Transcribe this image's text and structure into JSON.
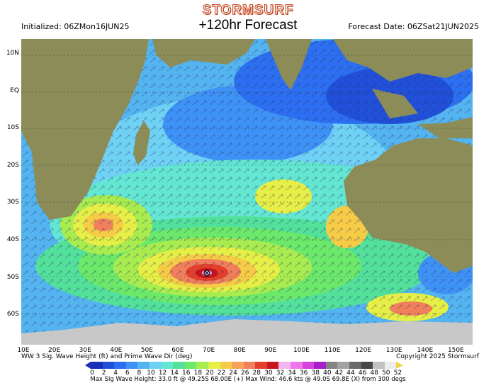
{
  "header": {
    "brand": "STORMSURF",
    "initialized": "Initialized: 06ZMon16JUN25",
    "forecast_hour": "+120hr Forecast",
    "forecast_date": "Forecast Date: 06ZSat21JUN2025"
  },
  "lat_labels": [
    "10N",
    "EQ",
    "10S",
    "20S",
    "30S",
    "40S",
    "50S",
    "60S"
  ],
  "lon_labels": [
    "10E",
    "20E",
    "30E",
    "40E",
    "50E",
    "60E",
    "70E",
    "80E",
    "90E",
    "100E",
    "110E",
    "120E",
    "130E",
    "140E",
    "150E"
  ],
  "footer": {
    "legend_title": "WW 3 Sig. Wave Height (ft) and Prime Wave Dir (deg)",
    "copyright": "Copyright 2025 Stormsurf",
    "stats": "Max Sig Wave Height: 33.0 ft @ 49.25S 68.00E (+)  Max Wind: 46.6 kts @ 49.0S 69.8E (X) from 300 degs"
  },
  "scale": {
    "ticks": [
      "0",
      "2",
      "4",
      "6",
      "8",
      "10",
      "12",
      "14",
      "16",
      "18",
      "20",
      "22",
      "24",
      "26",
      "28",
      "30",
      "32",
      "34",
      "36",
      "38",
      "40",
      "42",
      "44",
      "46",
      "48",
      "50",
      "52"
    ],
    "colors": [
      "#1a2fb5",
      "#2150d8",
      "#2c6ff0",
      "#3f92f5",
      "#54b4f0",
      "#6fd2f5",
      "#63e6d2",
      "#53e09a",
      "#6ce86a",
      "#a8ec50",
      "#e6ef46",
      "#f6cc47",
      "#f5a35a",
      "#f0805b",
      "#e3402c",
      "#c8141b",
      "#f4b6ef",
      "#f077ea",
      "#d444dc",
      "#a71fc8",
      "#848484",
      "#a2a2a2",
      "#6a6a6a",
      "#464646",
      "#c2c2c2",
      "#ececec"
    ],
    "end_color": "#f2d24a"
  },
  "map": {
    "ocean_color": "#54b4f0",
    "land_color": "#8c8c58",
    "ice_color": "#c8c8c8"
  }
}
